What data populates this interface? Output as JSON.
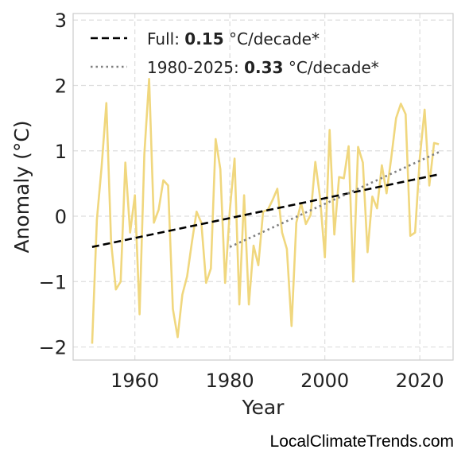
{
  "chart_data": {
    "type": "line",
    "xlabel": "Year",
    "ylabel": "Anomaly (°C)",
    "xlim": [
      1947,
      2027
    ],
    "ylim": [
      -2.2,
      3.1
    ],
    "xticks": [
      1960,
      1980,
      2000,
      2020
    ],
    "xtick_labels": [
      "1960",
      "1980",
      "2000",
      "2020"
    ],
    "yticks": [
      -2,
      -1,
      0,
      1,
      2,
      3
    ],
    "ytick_labels": [
      "−2",
      "−1",
      "0",
      "1",
      "2",
      "3"
    ],
    "grid": true,
    "legend_position": "top-left",
    "series": [
      {
        "color": "#f0d77e",
        "style": "solid",
        "x": [
          1951,
          1952,
          1953,
          1954,
          1955,
          1956,
          1957,
          1958,
          1959,
          1960,
          1961,
          1962,
          1963,
          1964,
          1965,
          1966,
          1967,
          1968,
          1969,
          1970,
          1971,
          1972,
          1973,
          1974,
          1975,
          1976,
          1977,
          1978,
          1979,
          1980,
          1981,
          1982,
          1983,
          1984,
          1985,
          1986,
          1987,
          1988,
          1989,
          1990,
          1991,
          1992,
          1993,
          1994,
          1995,
          1996,
          1997,
          1998,
          1999,
          2000,
          2001,
          2002,
          2003,
          2004,
          2005,
          2006,
          2007,
          2008,
          2009,
          2010,
          2011,
          2012,
          2013,
          2014,
          2015,
          2016,
          2017,
          2018,
          2019,
          2020,
          2021,
          2022,
          2023,
          2024
        ],
        "y": [
          -1.95,
          -0.05,
          0.75,
          1.73,
          -0.4,
          -1.12,
          -1.0,
          0.82,
          -0.25,
          0.32,
          -1.5,
          0.95,
          2.1,
          -0.1,
          0.1,
          0.55,
          0.47,
          -1.42,
          -1.85,
          -1.2,
          -0.92,
          -0.4,
          0.07,
          -0.1,
          -1.02,
          -0.8,
          1.18,
          0.72,
          -1.02,
          0.1,
          0.88,
          -1.35,
          0.32,
          -1.35,
          -0.45,
          -0.75,
          0.07,
          0.1,
          0.25,
          0.42,
          -0.25,
          -0.5,
          -1.68,
          -0.1,
          0.2,
          -0.12,
          0.02,
          0.83,
          0.28,
          -0.63,
          1.32,
          -0.28,
          0.6,
          0.58,
          1.07,
          -1.0,
          1.06,
          0.82,
          -0.55,
          0.3,
          0.12,
          0.78,
          0.35,
          0.9,
          1.5,
          1.72,
          1.56,
          -0.3,
          -0.25,
          0.9,
          1.63,
          0.47,
          1.12,
          1.1
        ]
      },
      {
        "name": "Full:",
        "trend_value": "0.15",
        "unit": "°C/decade*",
        "color": "#000000",
        "style": "dashed",
        "x": [
          1951,
          2024
        ],
        "y": [
          -0.47,
          0.64
        ]
      },
      {
        "name": "1980-2025:",
        "trend_value": "0.33",
        "unit": "°C/decade*",
        "color": "#808080",
        "style": "dotted",
        "x": [
          1980,
          2024
        ],
        "y": [
          -0.47,
          0.98
        ]
      }
    ]
  },
  "footer": {
    "source": "LocalClimateTrends.com"
  }
}
